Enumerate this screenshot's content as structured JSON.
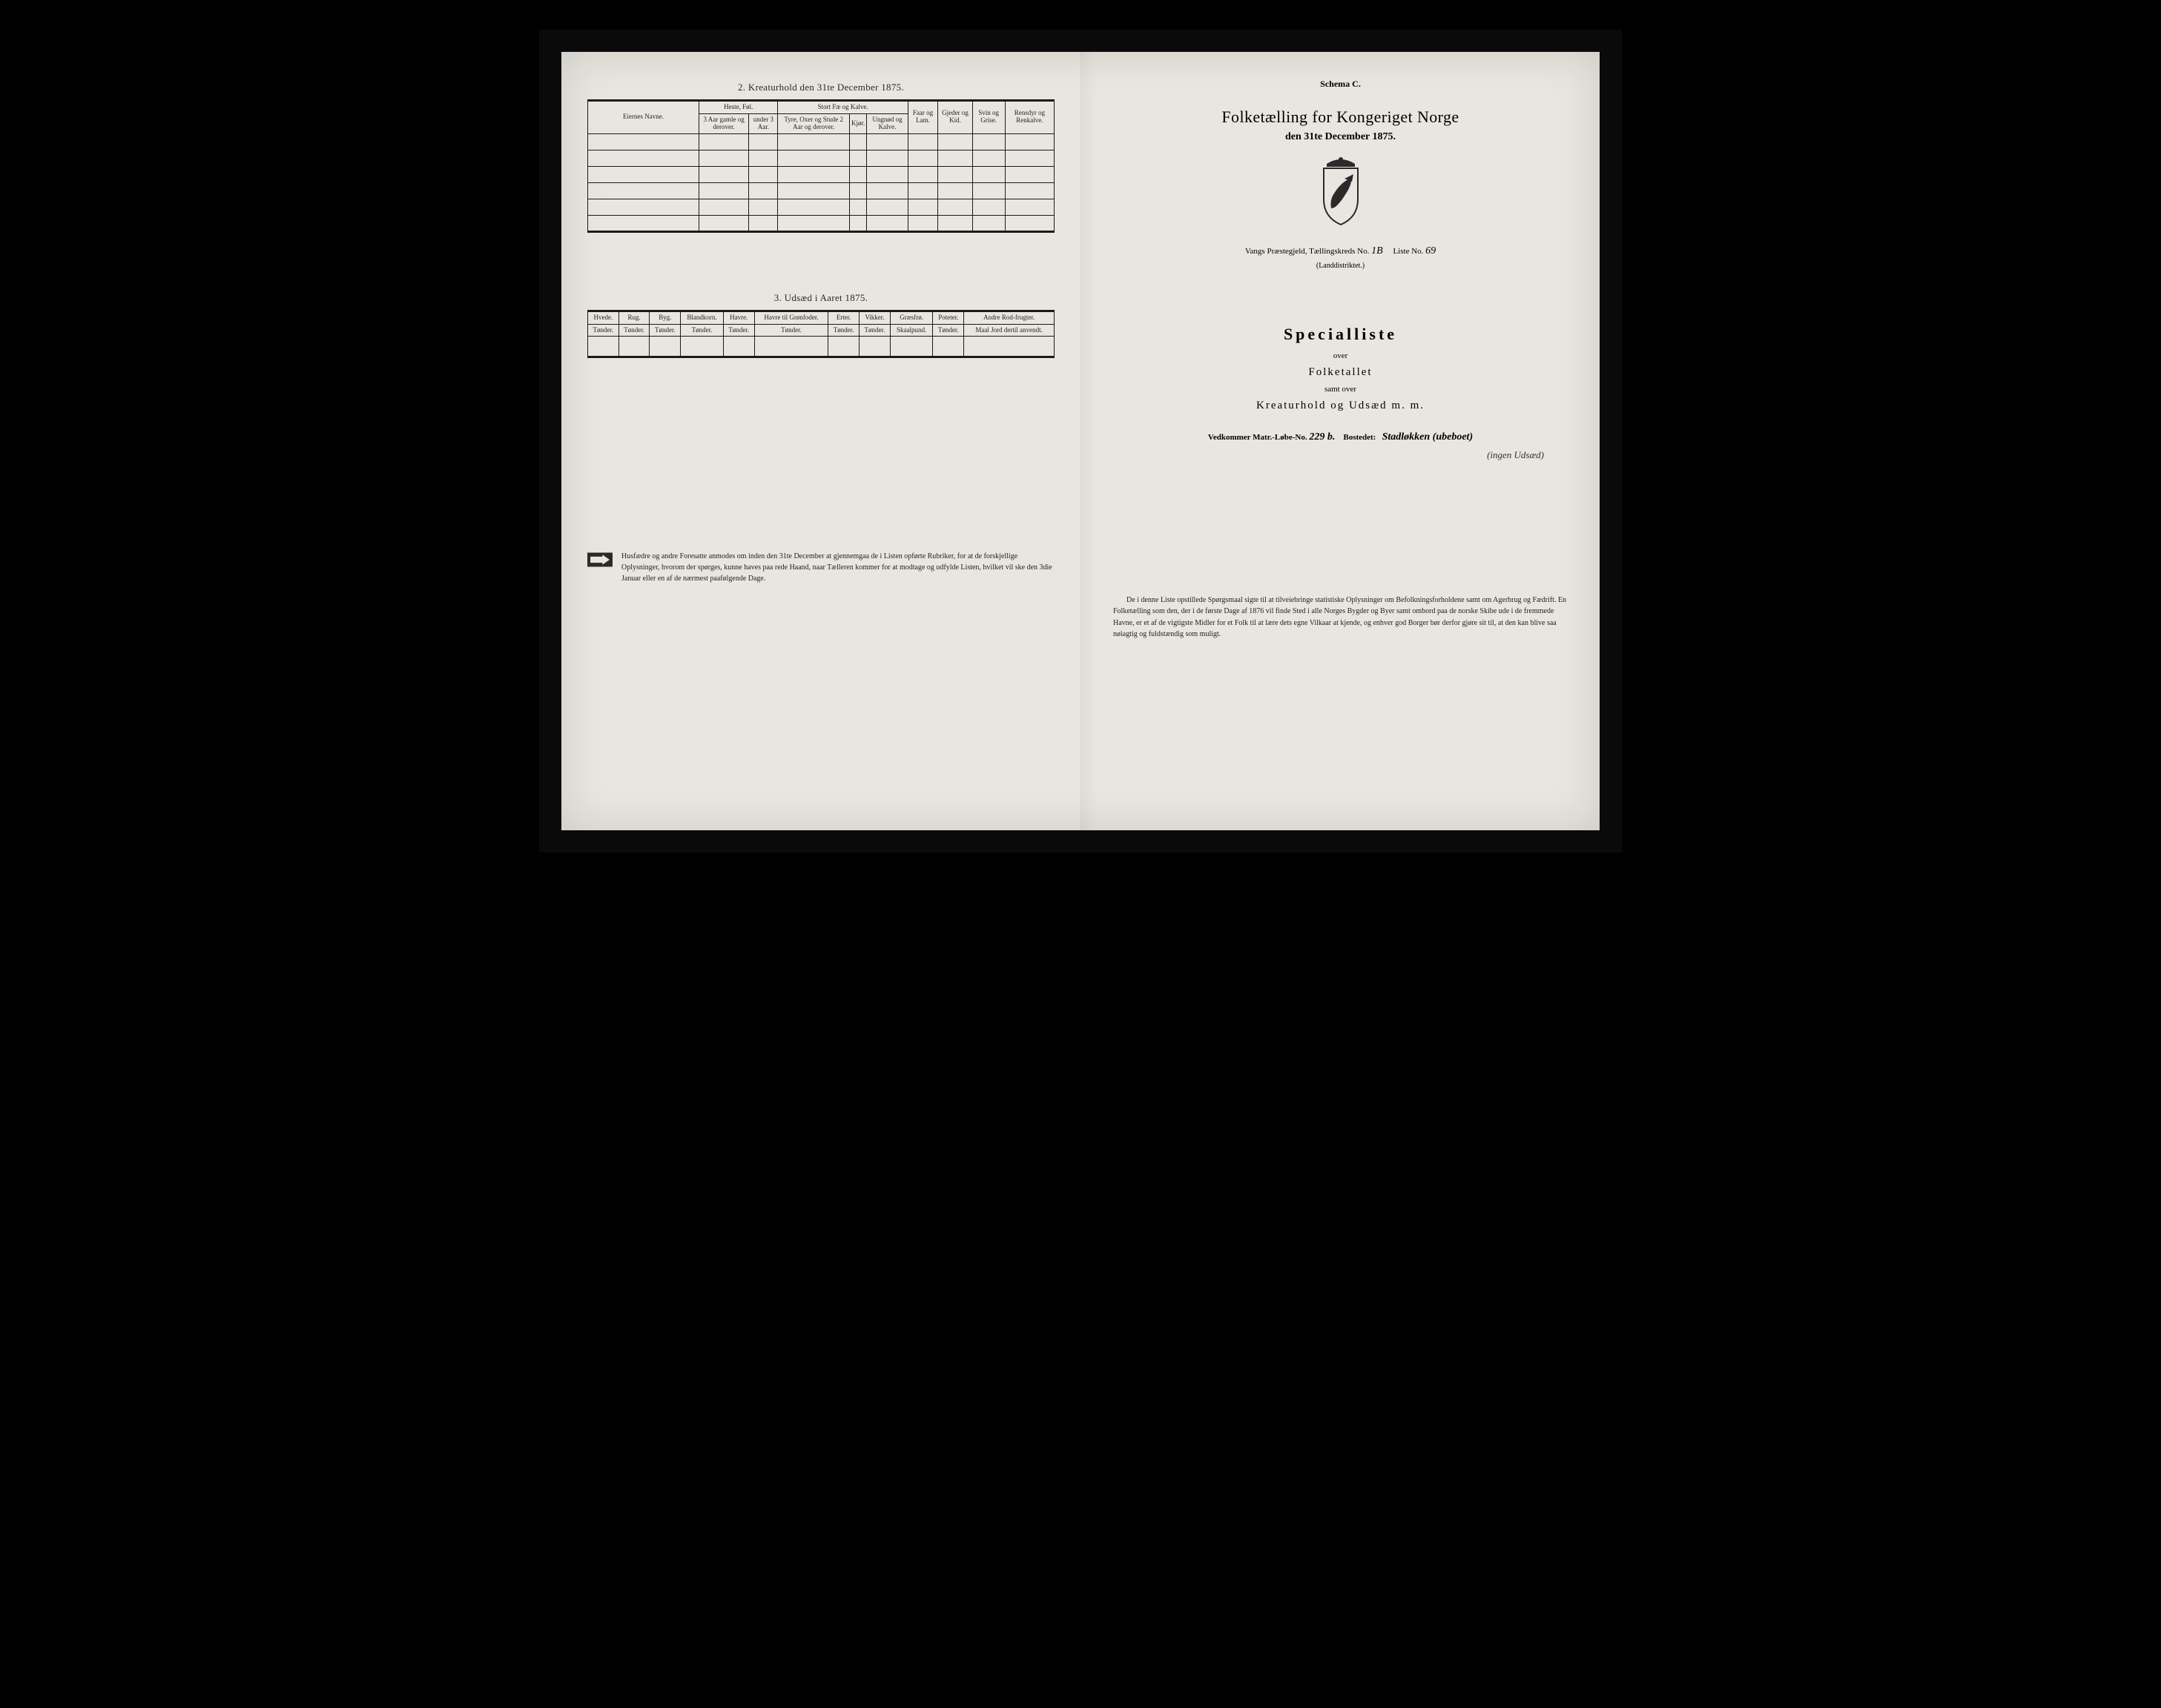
{
  "colors": {
    "page_bg": "#e8e6df",
    "frame_bg": "#000000",
    "ink": "#1a1a1a",
    "text": "#222222"
  },
  "left": {
    "section2_title": "2. Kreaturhold den 31te December 1875.",
    "kreatur": {
      "owner_header": "Eiernes Navne.",
      "group_heste": "Heste, Føl.",
      "group_stort": "Stort Fæ og Kalve.",
      "faar": "Faar og Lam.",
      "gjeder": "Gjeder og Kid.",
      "svin": "Svin og Grise.",
      "rensdyr": "Rensdyr og Renkalve.",
      "heste_sub1": "3 Aar gamle og derover.",
      "heste_sub2": "under 3 Aar.",
      "stort_sub1": "Tyre, Oxer og Stude 2 Aar og derover.",
      "stort_sub2": "Kjør.",
      "stort_sub3": "Ungnød og Kalve.",
      "rows": [
        "",
        "",
        "",
        "",
        "",
        ""
      ]
    },
    "section3_title": "3. Udsæd i Aaret 1875.",
    "udsaed": {
      "cols": [
        {
          "h": "Hvede.",
          "u": "Tønder."
        },
        {
          "h": "Rug.",
          "u": "Tønder."
        },
        {
          "h": "Byg.",
          "u": "Tønder."
        },
        {
          "h": "Blandkorn.",
          "u": "Tønder."
        },
        {
          "h": "Havre.",
          "u": "Tønder."
        },
        {
          "h": "Havre til Grønfoder.",
          "u": "Tønder."
        },
        {
          "h": "Erter.",
          "u": "Tønder."
        },
        {
          "h": "Vikker.",
          "u": "Tønder."
        },
        {
          "h": "Græsfrø.",
          "u": "Skaalpund."
        },
        {
          "h": "Poteter.",
          "u": "Tønder."
        },
        {
          "h": "Andre Rod-frugter.",
          "u": "Maal Jord dertil anvendt."
        }
      ]
    },
    "foot": "Husfædre og andre Foresatte anmodes om inden den 31te December at gjennemgaa de i Listen opførte Rubriker, for at de forskjellige Oplysninger, hvorom der spørges, kunne haves paa rede Haand, naar Tælleren kommer for at modtage og udfylde Listen, hvilket vil ske den 3die Januar eller en af de nærmest paafølgende Dage."
  },
  "right": {
    "schema": "Schema C.",
    "title": "Folketælling for Kongeriget Norge",
    "date": "den 31te December 1875.",
    "district_pre": "Vangs",
    "district_label": "Præstegjeld, Tællingskreds No.",
    "district_no": "1B",
    "liste_label": "Liste No.",
    "liste_no": "69",
    "district_sub": "(Landdistriktet.)",
    "special": "Specialliste",
    "over": "over",
    "folketallet": "Folketallet",
    "samt": "samt over",
    "kreatur": "Kreaturhold og Udsæd m. m.",
    "vedkommer_label": "Vedkommer Matr.-Løbe-No.",
    "matr_no": "229 b.",
    "bosted_label": "Bostedet:",
    "bosted_hand1": "Stadløkken (ubeboet)",
    "bosted_hand2": "(ingen Udsæd)",
    "footer": "De i denne Liste opstillede Spørgsmaal sigte til at tilveiebringe statistiske Oplysninger om Befolkningsforholdene samt om Agerbrug og Fædrift. En Folketælling som den, der i de første Dage af 1876 vil finde Sted i alle Norges Bygder og Byer samt ombord paa de norske Skibe ude i de fremmede Havne, er et af de vigtigste Midler for et Folk til at lære dets egne Vilkaar at kjende, og enhver god Borger bør derfor gjøre sit til, at den kan blive saa nøiagtig og fuldstændig som muligt."
  }
}
